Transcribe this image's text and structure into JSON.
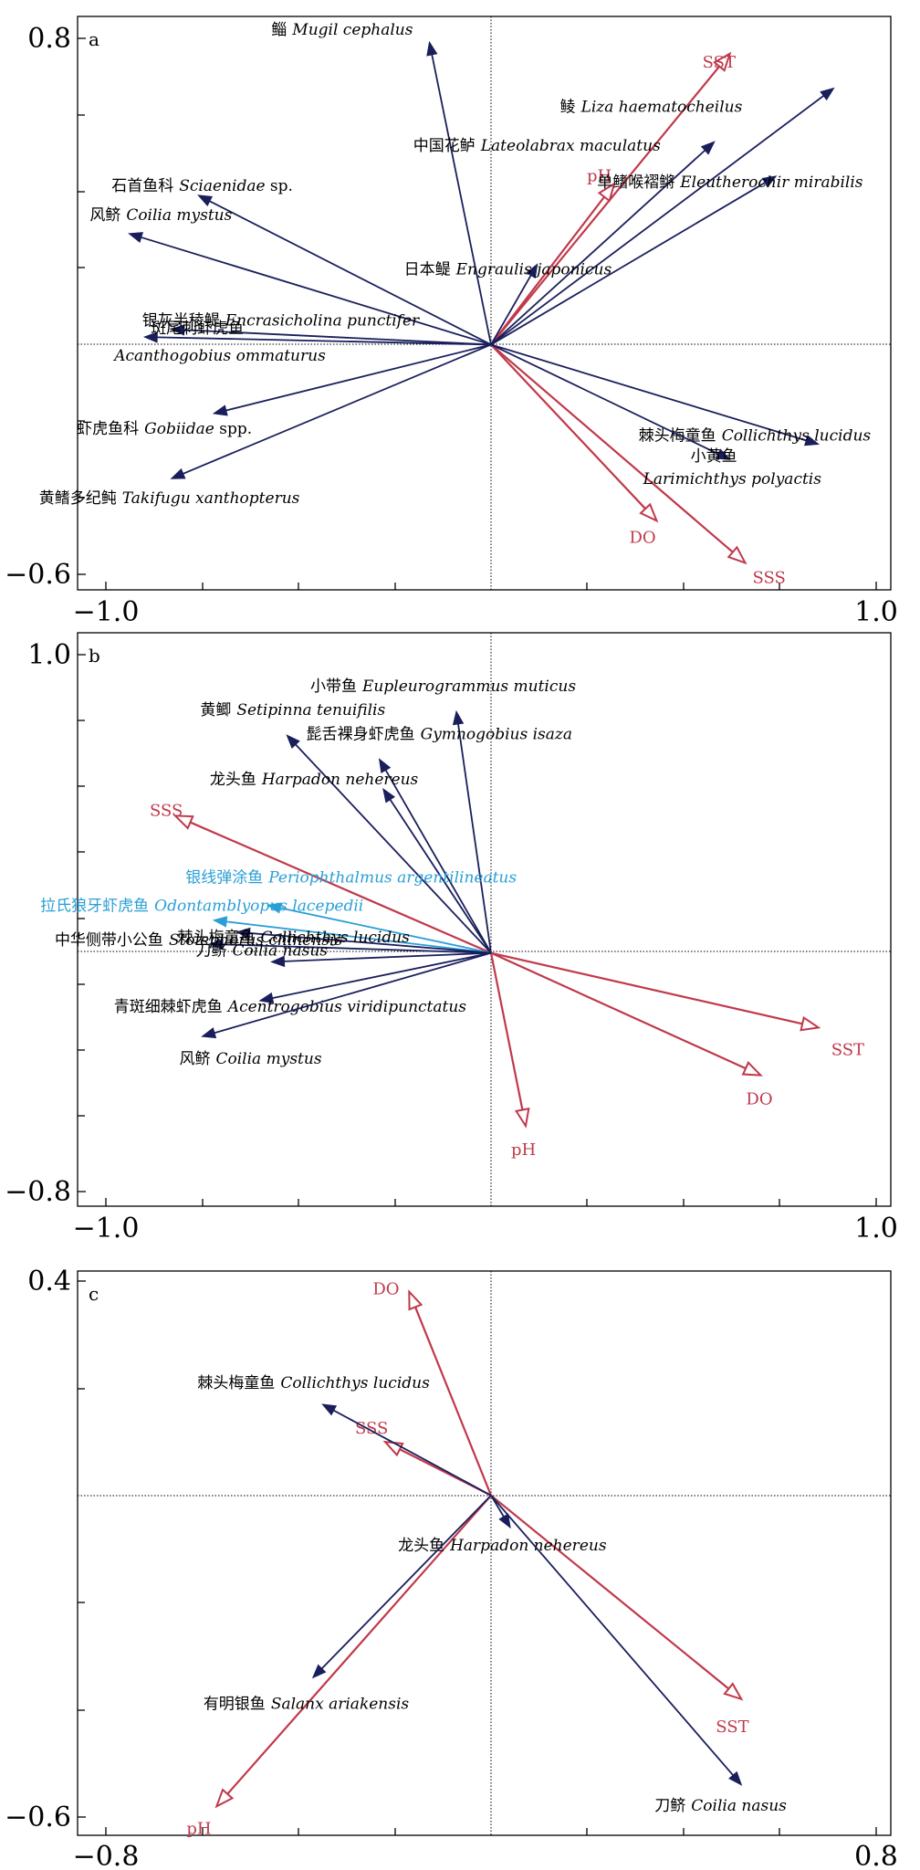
{
  "colors": {
    "species": "#1a1f5c",
    "env": "#c0394b",
    "highlight": "#2a9fd6",
    "text": "#000000"
  },
  "chart_data": [
    {
      "type": "biplot",
      "panel_label": "a",
      "xlim": [
        -1.0,
        1.0
      ],
      "ylim": [
        -0.6,
        0.8
      ],
      "x_ticklabels": [
        "−1.0",
        "1.0"
      ],
      "y_ticklabels": [
        "0.8",
        "−0.6"
      ],
      "species": [
        {
          "cn": "鲻",
          "sci": "Mugil cephalus",
          "x": -0.16,
          "y": 0.79
        },
        {
          "cn": "鲮",
          "sci": "Liza haematocheilus",
          "x": 0.89,
          "y": 0.67
        },
        {
          "cn": "中国花鲈",
          "sci": "Lateolabrax maculatus",
          "x": 0.58,
          "y": 0.53
        },
        {
          "cn": "单鳍喉褶鳉",
          "sci": "Eleutherochir mirabilis",
          "x": 0.74,
          "y": 0.44
        },
        {
          "cn": "石首鱼科",
          "sci": "Sciaenidae",
          "suffix": " sp.",
          "x": -0.76,
          "y": 0.39
        },
        {
          "cn": "风鲚",
          "sci": "Coilia mystus",
          "x": -0.94,
          "y": 0.29
        },
        {
          "cn": "日本鳀",
          "sci": "Engraulis japonicus",
          "x": 0.12,
          "y": 0.21
        },
        {
          "cn": "银灰半稜鳀",
          "sci": "Encrasicholina punctifer",
          "x": -0.83,
          "y": 0.04
        },
        {
          "cn": "斑尾刺虾虎鱼",
          "sci": "Acanthogobius ommaturus",
          "x": -0.9,
          "y": 0.02
        },
        {
          "cn": "虾虎鱼科",
          "sci": "Gobiidae",
          "suffix": " spp.",
          "x": -0.72,
          "y": -0.18
        },
        {
          "cn": "黄鳍多纪鲀",
          "sci": "Takifugu xanthopterus",
          "x": -0.83,
          "y": -0.35
        },
        {
          "cn": "棘头梅童鱼",
          "sci": "Collichthys lucidus",
          "x": 0.85,
          "y": -0.26
        },
        {
          "cn": "小黄鱼",
          "sci": "Larimichthys polyactis",
          "x": 0.62,
          "y": -0.3
        }
      ],
      "env": [
        {
          "name": "SST",
          "x": 0.62,
          "y": 0.76
        },
        {
          "name": "pH",
          "x": 0.32,
          "y": 0.42
        },
        {
          "name": "DO",
          "x": 0.43,
          "y": -0.46
        },
        {
          "name": "SSS",
          "x": 0.66,
          "y": -0.57
        }
      ]
    },
    {
      "type": "biplot",
      "panel_label": "b",
      "xlim": [
        -1.0,
        1.0
      ],
      "ylim": [
        -0.8,
        1.0
      ],
      "x_ticklabels": [
        "−1.0",
        "1.0"
      ],
      "y_ticklabels": [
        "1.0",
        "−0.8"
      ],
      "species": [
        {
          "cn": "小带鱼",
          "sci": "Eupleurogrammus muticus",
          "x": -0.09,
          "y": 0.81
        },
        {
          "cn": "黄鲫",
          "sci": "Setipinna tenuifilis",
          "x": -0.53,
          "y": 0.73
        },
        {
          "cn": "髭舌裸身虾虎鱼",
          "sci": "Gymnogobius isaza",
          "x": -0.29,
          "y": 0.65
        },
        {
          "cn": "龙头鱼",
          "sci": "Harpadon nehereus",
          "x": -0.28,
          "y": 0.55
        },
        {
          "cn": "银线弹涂鱼",
          "sci": "Periophthalmus argentilineatus",
          "highlight": true,
          "x": -0.58,
          "y": 0.16
        },
        {
          "cn": "拉氏狼牙虾虎鱼",
          "sci": "Odontamblyopus lacepedii",
          "highlight": true,
          "x": -0.72,
          "y": 0.11
        },
        {
          "cn": "棘头梅童鱼",
          "sci": "Collichthys lucidus",
          "x": -0.66,
          "y": 0.07
        },
        {
          "cn": "中华侧带小公鱼",
          "sci": "Stolephorus chinensis",
          "x": -0.73,
          "y": 0.03
        },
        {
          "cn": "刀鲚",
          "sci": "Coilia nasus",
          "x": -0.57,
          "y": -0.03
        },
        {
          "cn": "青斑细棘虾虎鱼",
          "sci": "Acentrogobius viridipunctatus",
          "x": -0.6,
          "y": -0.16
        },
        {
          "cn": "风鲚",
          "sci": "Coilia mystus",
          "x": -0.75,
          "y": -0.28
        }
      ],
      "env": [
        {
          "name": "SSS",
          "x": -0.82,
          "y": 0.46
        },
        {
          "name": "SST",
          "x": 0.85,
          "y": -0.25
        },
        {
          "name": "DO",
          "x": 0.7,
          "y": -0.41
        },
        {
          "name": "pH",
          "x": 0.09,
          "y": -0.58
        }
      ]
    },
    {
      "type": "biplot",
      "panel_label": "c",
      "xlim": [
        -0.8,
        0.8
      ],
      "ylim": [
        -0.6,
        0.4
      ],
      "x_ticklabels": [
        "−0.8",
        "0.8"
      ],
      "y_ticklabels": [
        "0.4",
        "−0.6"
      ],
      "species": [
        {
          "cn": "棘头梅童鱼",
          "sci": "Collichthys lucidus",
          "x": -0.35,
          "y": 0.17
        },
        {
          "cn": "龙头鱼",
          "sci": "Harpadon nehereus",
          "x": 0.04,
          "y": -0.06
        },
        {
          "cn": "有明银鱼",
          "sci": "Salanx ariakensis",
          "x": -0.37,
          "y": -0.34
        },
        {
          "cn": "刀鲚",
          "sci": "Coilia nasus",
          "x": 0.52,
          "y": -0.54
        }
      ],
      "env": [
        {
          "name": "DO",
          "x": -0.17,
          "y": 0.38
        },
        {
          "name": "SSS",
          "x": -0.22,
          "y": 0.1
        },
        {
          "name": "SST",
          "x": 0.52,
          "y": -0.38
        },
        {
          "name": "pH",
          "x": -0.57,
          "y": -0.58
        }
      ]
    }
  ]
}
